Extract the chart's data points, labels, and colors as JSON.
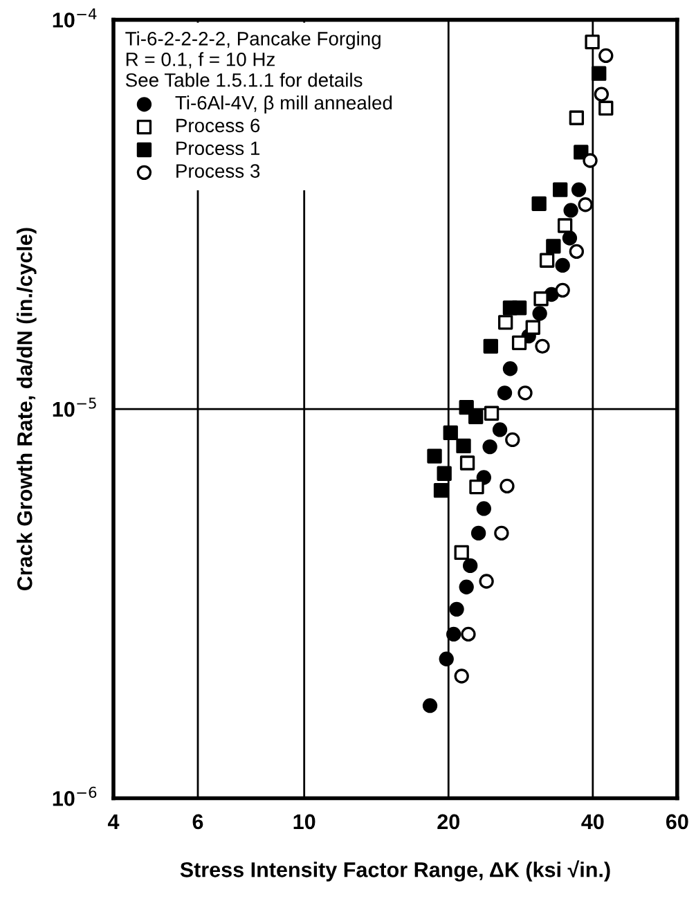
{
  "chart_data": {
    "type": "scatter",
    "xlabel": "Stress Intensity Factor Range, ΔK (ksi √in.)",
    "ylabel": "Crack Growth Rate, da/dN (in./cycle)",
    "legend_title": "Ti-6-2-2-2-2, Pancake Forging\nR = 0.1, f = 10 Hz\nSee Table 1.5.1.1 for details",
    "log": "xy",
    "grid": true,
    "legend": "top left",
    "xlim": [
      4,
      60
    ],
    "xticks": [
      4,
      6,
      10,
      20,
      40,
      60
    ],
    "ylim": [
      1e-06,
      0.0001
    ],
    "yticks": [
      {
        "value": 1e-06,
        "label": "10$^{−6}$"
      },
      {
        "value": 1e-05,
        "label": "10$^{−5}$"
      },
      {
        "value": 0.0001,
        "label": "10$^{−4}$"
      }
    ],
    "series": [
      {
        "name": "Ti-6Al-4V, β mill annealed",
        "color": "#000000",
        "marker": "circle",
        "x": [
          37.4,
          36.0,
          35.8,
          34.6,
          32.8,
          31.0,
          29.4,
          26.9,
          26.2,
          25.6,
          24.4,
          23.7,
          23.7,
          23.1,
          22.2,
          21.8,
          20.8,
          20.5,
          19.8,
          18.3
        ],
        "values": [
          3.66e-05,
          3.24e-05,
          2.75e-05,
          2.34e-05,
          1.97e-05,
          1.76e-05,
          1.54e-05,
          1.27e-05,
          1.1e-05,
          8.85e-06,
          8e-06,
          6.67e-06,
          5.55e-06,
          4.8e-06,
          3.96e-06,
          3.49e-06,
          3.06e-06,
          2.64e-06,
          2.28e-06,
          1.73e-06
        ]
      },
      {
        "name": "Process 6",
        "color": "#ffffff",
        "marker": "square",
        "x": [
          39.9,
          42.6,
          37.0,
          35.0,
          32.1,
          31.2,
          26.3,
          30.0,
          28.1,
          24.6,
          21.9,
          22.9,
          21.3
        ],
        "values": [
          8.77e-05,
          5.93e-05,
          5.6e-05,
          2.96e-05,
          2.41e-05,
          1.92e-05,
          1.67e-05,
          1.62e-05,
          1.48e-05,
          9.75e-06,
          7.27e-06,
          6.31e-06,
          4.28e-06
        ]
      },
      {
        "name": "Process 1",
        "color": "#000000",
        "marker": "square",
        "x": [
          41.2,
          37.8,
          34.2,
          30.9,
          33.1,
          26.9,
          28.1,
          24.5,
          21.8,
          22.8,
          20.2,
          21.5,
          18.7,
          19.6,
          19.3
        ],
        "values": [
          7.28e-05,
          4.57e-05,
          3.66e-05,
          3.37e-05,
          2.62e-05,
          1.82e-05,
          1.82e-05,
          1.45e-05,
          1.01e-05,
          9.55e-06,
          8.69e-06,
          8.04e-06,
          7.57e-06,
          6.83e-06,
          6.18e-06
        ]
      },
      {
        "name": "Process 3",
        "color": "#ffffff",
        "marker": "circle",
        "x": [
          42.6,
          41.7,
          39.5,
          38.6,
          37.0,
          34.6,
          31.4,
          28.9,
          27.2,
          26.5,
          25.8,
          24.0,
          22.0,
          21.3
        ],
        "values": [
          8.09e-05,
          6.44e-05,
          4.35e-05,
          3.35e-05,
          2.54e-05,
          2.02e-05,
          1.45e-05,
          1.1e-05,
          8.34e-06,
          6.34e-06,
          4.8e-06,
          3.61e-06,
          2.64e-06,
          2.06e-06
        ]
      }
    ]
  }
}
